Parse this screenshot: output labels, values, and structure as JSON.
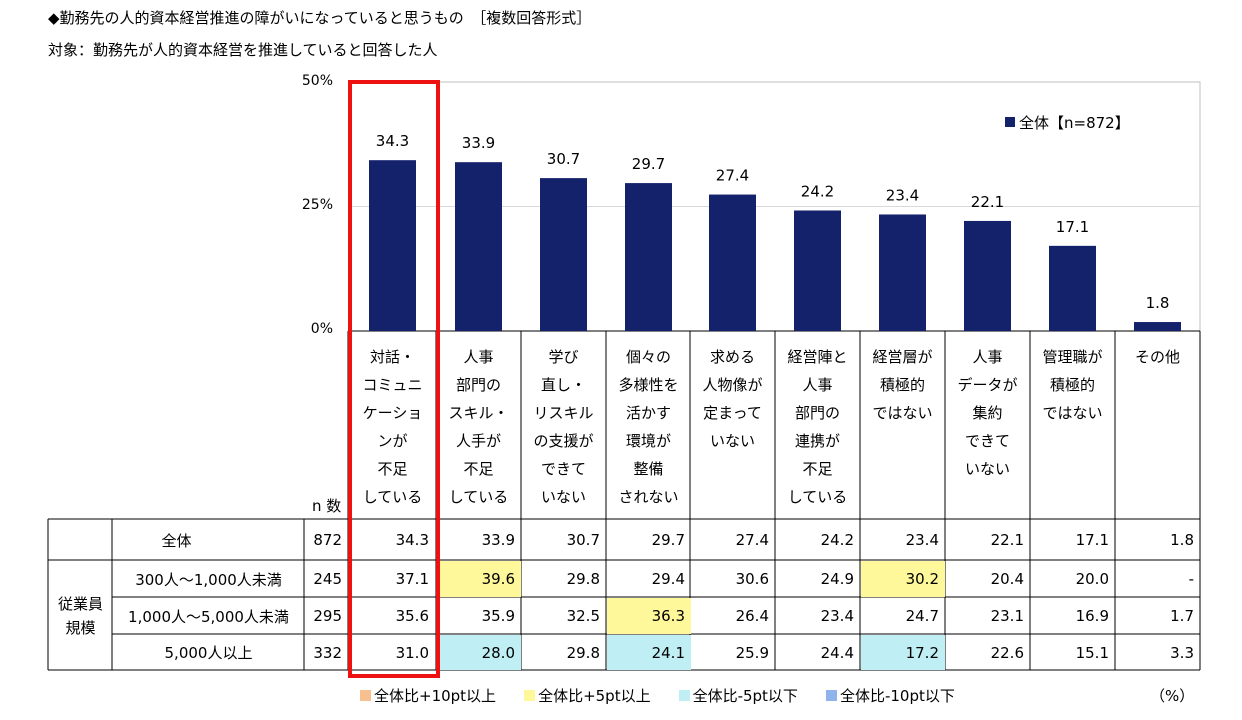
{
  "title": "◆勤務先の人的資本経営推進の障がいになっていると思うもの　［複数回答形式］",
  "subtitle": "対象：勤務先が人的資本経営を推進していると回答した人",
  "chart_data": {
    "type": "bar",
    "ylim": [
      0,
      50
    ],
    "yticks": [
      "0%",
      "25%",
      "50%"
    ],
    "legend": "全体【n=872】",
    "legend_position": "top-right",
    "bar_color": "#14216b",
    "categories": [
      [
        "対話・",
        "コミュニ",
        "ケーショ",
        "ンが",
        "不足",
        "している"
      ],
      [
        "人事",
        "部門の",
        "スキル・",
        "人手が",
        "不足",
        "している"
      ],
      [
        "学び",
        "直し・",
        "リスキル",
        "の支援が",
        "できて",
        "いない"
      ],
      [
        "個々の",
        "多様性を",
        "活かす",
        "環境が",
        "整備",
        "されない"
      ],
      [
        "求める",
        "人物像が",
        "定まって",
        "いない"
      ],
      [
        "経営陣と",
        "人事",
        "部門の",
        "連携が",
        "不足",
        "している"
      ],
      [
        "経営層が",
        "積極的",
        "ではない"
      ],
      [
        "人事",
        "データが",
        "集約",
        "できて",
        "いない"
      ],
      [
        "管理職が",
        "積極的",
        "ではない"
      ],
      [
        "その他"
      ]
    ],
    "values": [
      34.3,
      33.9,
      30.7,
      29.7,
      27.4,
      24.2,
      23.4,
      22.1,
      17.1,
      1.8
    ],
    "data_labels": [
      "34.3",
      "33.9",
      "30.7",
      "29.7",
      "27.4",
      "24.2",
      "23.4",
      "22.1",
      "17.1",
      "1.8"
    ]
  },
  "table": {
    "n_header": "n 数",
    "group_label": [
      "従業員",
      "規模"
    ],
    "rows": [
      {
        "label": "全体",
        "n": "872",
        "values": [
          "34.3",
          "33.9",
          "30.7",
          "29.7",
          "27.4",
          "24.2",
          "23.4",
          "22.1",
          "17.1",
          "1.8"
        ],
        "highlight": [
          "",
          "",
          "",
          "",
          "",
          "",
          "",
          "",
          "",
          ""
        ]
      },
      {
        "label": "300人～1,000人未満",
        "n": "245",
        "values": [
          "37.1",
          "39.6",
          "29.8",
          "29.4",
          "30.6",
          "24.9",
          "30.2",
          "20.4",
          "20.0",
          "-"
        ],
        "highlight": [
          "",
          "+5",
          "",
          "",
          "",
          "",
          "+5",
          "",
          "",
          ""
        ]
      },
      {
        "label": "1,000人～5,000人未満",
        "n": "295",
        "values": [
          "35.6",
          "35.9",
          "32.5",
          "36.3",
          "26.4",
          "23.4",
          "24.7",
          "23.1",
          "16.9",
          "1.7"
        ],
        "highlight": [
          "",
          "",
          "",
          "+5",
          "",
          "",
          "",
          "",
          "",
          ""
        ]
      },
      {
        "label": "5,000人以上",
        "n": "332",
        "values": [
          "31.0",
          "28.0",
          "29.8",
          "24.1",
          "25.9",
          "24.4",
          "17.2",
          "22.6",
          "15.1",
          "3.3"
        ],
        "highlight": [
          "",
          "-5",
          "",
          "-5",
          "",
          "",
          "-5",
          "",
          "",
          ""
        ]
      }
    ]
  },
  "highlight_key": [
    {
      "label": "全体比+10pt以上",
      "color": "#f9c08f"
    },
    {
      "label": "全体比+5pt以上",
      "color": "#fff89a"
    },
    {
      "label": "全体比-5pt以下",
      "color": "#bfeff4"
    },
    {
      "label": "全体比-10pt以下",
      "color": "#8fb4ec"
    }
  ],
  "unit": "（%）"
}
